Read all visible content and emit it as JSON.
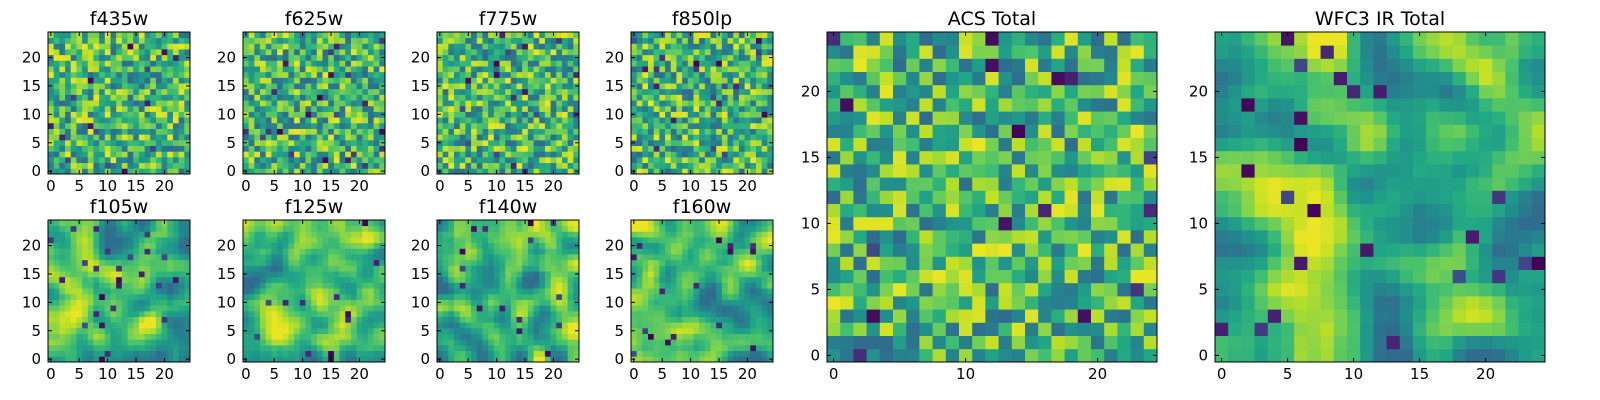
{
  "chart_data": [
    {
      "type": "heatmap",
      "title": "f435w",
      "seed": 11,
      "smooth": 0,
      "colormap": "viridis",
      "grid": false,
      "n": 25,
      "xticks": [
        0,
        5,
        10,
        15,
        20
      ],
      "yticks": [
        0,
        5,
        10,
        15,
        20
      ],
      "xlim": [
        -0.5,
        24.5
      ],
      "ylim": [
        -0.5,
        24.5
      ]
    },
    {
      "type": "heatmap",
      "title": "f625w",
      "seed": 23,
      "smooth": 0,
      "colormap": "viridis",
      "grid": false,
      "n": 25,
      "xticks": [
        0,
        5,
        10,
        15,
        20
      ],
      "yticks": [
        0,
        5,
        10,
        15,
        20
      ],
      "xlim": [
        -0.5,
        24.5
      ],
      "ylim": [
        -0.5,
        24.5
      ]
    },
    {
      "type": "heatmap",
      "title": "f775w",
      "seed": 37,
      "smooth": 0,
      "colormap": "viridis",
      "grid": false,
      "n": 25,
      "xticks": [
        0,
        5,
        10,
        15,
        20
      ],
      "yticks": [
        0,
        5,
        10,
        15,
        20
      ],
      "xlim": [
        -0.5,
        24.5
      ],
      "ylim": [
        -0.5,
        24.5
      ]
    },
    {
      "type": "heatmap",
      "title": "f850lp",
      "seed": 41,
      "smooth": 0,
      "colormap": "viridis",
      "grid": false,
      "n": 25,
      "xticks": [
        0,
        5,
        10,
        15,
        20
      ],
      "yticks": [
        0,
        5,
        10,
        15,
        20
      ],
      "xlim": [
        -0.5,
        24.5
      ],
      "ylim": [
        -0.5,
        24.5
      ]
    },
    {
      "type": "heatmap",
      "title": "f105w",
      "seed": 53,
      "smooth": 1,
      "colormap": "viridis",
      "grid": false,
      "n": 25,
      "xticks": [
        0,
        5,
        10,
        15,
        20
      ],
      "yticks": [
        0,
        5,
        10,
        15,
        20
      ],
      "xlim": [
        -0.5,
        24.5
      ],
      "ylim": [
        -0.5,
        24.5
      ]
    },
    {
      "type": "heatmap",
      "title": "f125w",
      "seed": 67,
      "smooth": 1,
      "colormap": "viridis",
      "grid": false,
      "n": 25,
      "xticks": [
        0,
        5,
        10,
        15,
        20
      ],
      "yticks": [
        0,
        5,
        10,
        15,
        20
      ],
      "xlim": [
        -0.5,
        24.5
      ],
      "ylim": [
        -0.5,
        24.5
      ]
    },
    {
      "type": "heatmap",
      "title": "f140w",
      "seed": 79,
      "smooth": 1,
      "colormap": "viridis",
      "grid": false,
      "n": 25,
      "xticks": [
        0,
        5,
        10,
        15,
        20
      ],
      "yticks": [
        0,
        5,
        10,
        15,
        20
      ],
      "xlim": [
        -0.5,
        24.5
      ],
      "ylim": [
        -0.5,
        24.5
      ]
    },
    {
      "type": "heatmap",
      "title": "f160w",
      "seed": 83,
      "smooth": 1,
      "colormap": "viridis",
      "grid": false,
      "n": 25,
      "xticks": [
        0,
        5,
        10,
        15,
        20
      ],
      "yticks": [
        0,
        5,
        10,
        15,
        20
      ],
      "xlim": [
        -0.5,
        24.5
      ],
      "ylim": [
        -0.5,
        24.5
      ]
    },
    {
      "type": "heatmap",
      "title": "ACS Total",
      "seed": 97,
      "smooth": 0,
      "colormap": "viridis",
      "grid": false,
      "n": 25,
      "xticks": [
        0,
        10,
        20
      ],
      "yticks": [
        0,
        5,
        10,
        15,
        20
      ],
      "xlim": [
        -0.5,
        24.5
      ],
      "ylim": [
        -0.5,
        24.5
      ]
    },
    {
      "type": "heatmap",
      "title": "WFC3 IR Total",
      "seed": 101,
      "smooth": 1,
      "colormap": "viridis",
      "grid": false,
      "n": 25,
      "xticks": [
        0,
        5,
        10,
        15,
        20
      ],
      "yticks": [
        0,
        5,
        10,
        15,
        20
      ],
      "xlim": [
        -0.5,
        24.5
      ],
      "ylim": [
        -0.5,
        24.5
      ]
    }
  ]
}
